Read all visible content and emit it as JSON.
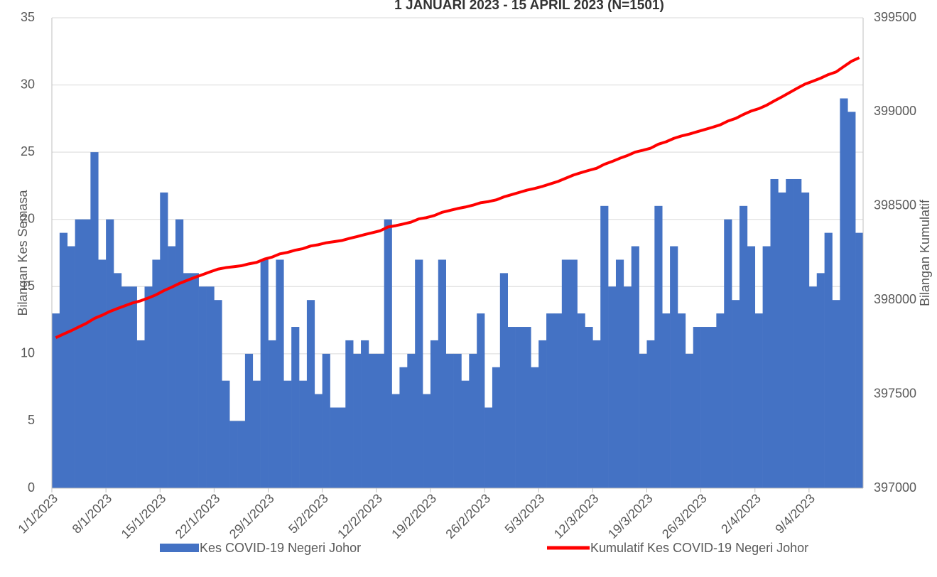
{
  "chart_data": {
    "type": "bar",
    "title": "1 JANUARI 2023 - 15 APRIL 2023 (N=1501)",
    "y_label": "Bilangan Kes Semasa",
    "y2_label": "Bilangan Kumulatif",
    "categories": [
      "1/1/2023",
      null,
      null,
      null,
      null,
      null,
      null,
      "8/1/2023",
      null,
      null,
      null,
      null,
      null,
      null,
      "15/1/2023",
      null,
      null,
      null,
      null,
      null,
      null,
      "22/1/2023",
      null,
      null,
      null,
      null,
      null,
      null,
      "29/1/2023",
      null,
      null,
      null,
      null,
      null,
      null,
      "5/2/2023",
      null,
      null,
      null,
      null,
      null,
      null,
      "12/2/2023",
      null,
      null,
      null,
      null,
      null,
      null,
      "19/2/2023",
      null,
      null,
      null,
      null,
      null,
      null,
      "26/2/2023",
      null,
      null,
      null,
      null,
      null,
      null,
      "5/3/2023",
      null,
      null,
      null,
      null,
      null,
      null,
      "12/3/2023",
      null,
      null,
      null,
      null,
      null,
      null,
      "19/3/2023",
      null,
      null,
      null,
      null,
      null,
      null,
      "26/3/2023",
      null,
      null,
      null,
      null,
      null,
      null,
      "2/4/2023",
      null,
      null,
      null,
      null,
      null,
      null,
      "9/4/2023",
      null,
      null,
      null,
      null,
      null,
      null
    ],
    "series": [
      {
        "name": "Kes COVID-19 Negeri Johor",
        "type": "bar",
        "color": "#4472c4",
        "values": [
          13,
          19,
          18,
          20,
          20,
          25,
          17,
          20,
          16,
          15,
          15,
          11,
          15,
          17,
          22,
          18,
          20,
          16,
          16,
          15,
          15,
          14,
          8,
          5,
          5,
          10,
          8,
          17,
          11,
          17,
          8,
          12,
          8,
          14,
          7,
          10,
          6,
          6,
          11,
          10,
          11,
          10,
          10,
          20,
          7,
          9,
          10,
          17,
          7,
          11,
          17,
          10,
          10,
          8,
          10,
          13,
          6,
          9,
          16,
          12,
          12,
          12,
          9,
          11,
          13,
          13,
          17,
          17,
          13,
          12,
          11,
          21,
          15,
          17,
          15,
          18,
          10,
          11,
          21,
          13,
          18,
          13,
          10,
          12,
          12,
          12,
          13,
          20,
          14,
          21,
          18,
          13,
          18,
          23,
          22,
          23,
          23,
          22,
          15,
          16,
          19,
          14,
          29,
          28,
          19
        ]
      },
      {
        "name": "Kumulatif Kes COVID-19 Negeri Johor",
        "type": "line",
        "axis": "y2",
        "color": "#ff0000",
        "values": [
          397800,
          397819,
          397837,
          397857,
          397877,
          397902,
          397919,
          397939,
          397955,
          397970,
          397985,
          397996,
          398011,
          398028,
          398050,
          398068,
          398088,
          398104,
          398120,
          398135,
          398150,
          398164,
          398172,
          398177,
          398182,
          398192,
          398200,
          398217,
          398228,
          398245,
          398253,
          398265,
          398273,
          398287,
          398294,
          398304,
          398310,
          398316,
          398327,
          398337,
          398348,
          398358,
          398368,
          398388,
          398395,
          398404,
          398414,
          398431,
          398438,
          398449,
          398466,
          398476,
          398486,
          398494,
          398504,
          398517,
          398523,
          398532,
          398548,
          398560,
          398572,
          398584,
          398593,
          398604,
          398617,
          398630,
          398647,
          398664,
          398677,
          398689,
          398700,
          398721,
          398736,
          398753,
          398768,
          398786,
          398796,
          398807,
          398828,
          398841,
          398859,
          398872,
          398882,
          398894,
          398906,
          398918,
          398931,
          398951,
          398965,
          398986,
          399004,
          399017,
          399035,
          399058,
          399080,
          399103,
          399126,
          399148,
          399163,
          399179,
          399198,
          399212,
          399241,
          399269,
          399288
        ]
      }
    ],
    "ylim": [
      0,
      35
    ],
    "yticks": [
      0,
      5,
      10,
      15,
      20,
      25,
      30,
      35
    ],
    "y2lim": [
      397000,
      399500
    ],
    "y2ticks": [
      397000,
      397500,
      398000,
      398500,
      399000,
      399500
    ],
    "grid": true,
    "legend": "bottom"
  }
}
